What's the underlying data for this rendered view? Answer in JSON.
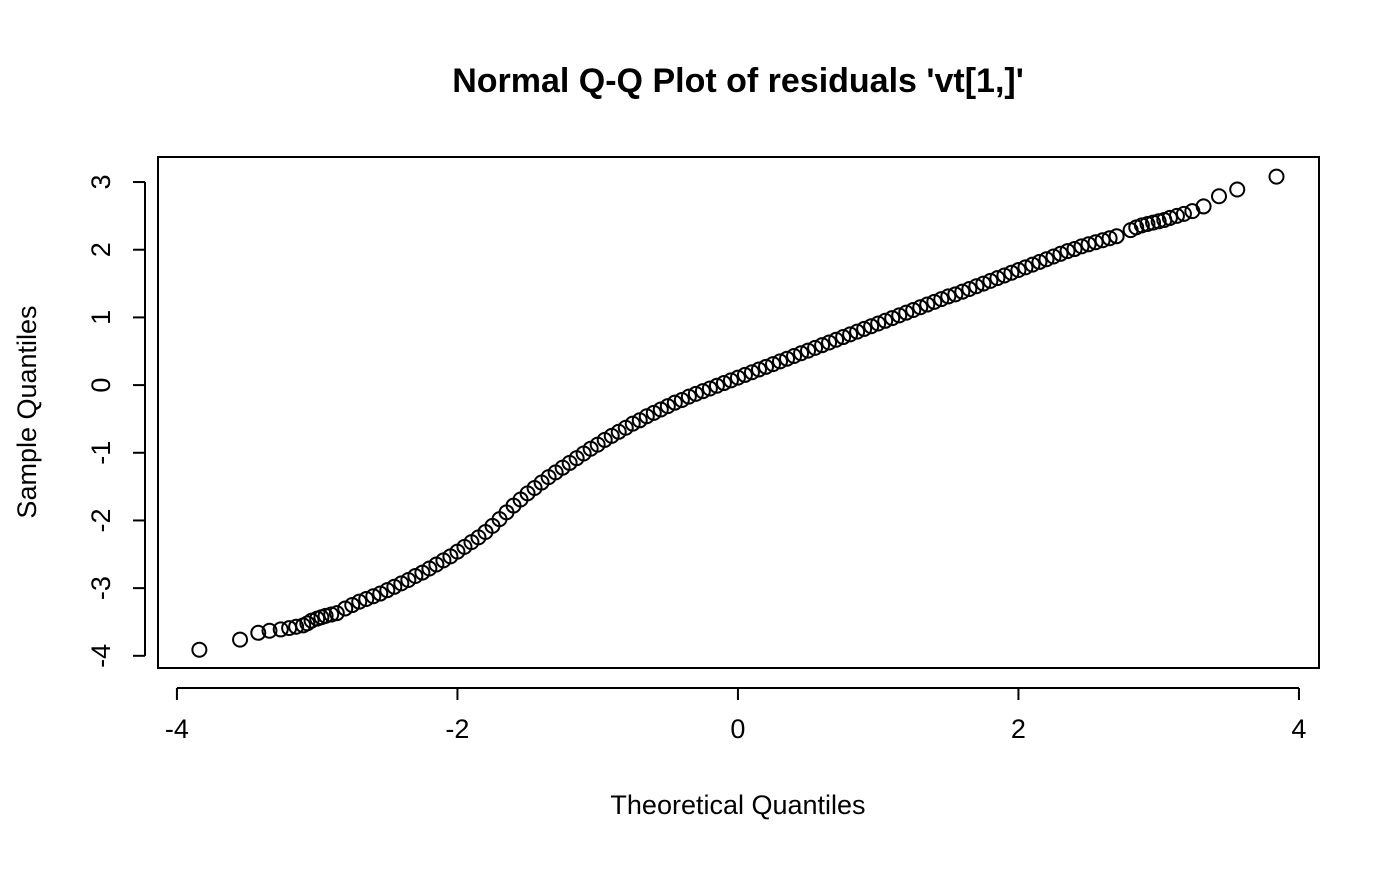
{
  "chart_data": {
    "type": "scatter",
    "title": "Normal Q-Q Plot of residuals 'vt[1,]'",
    "x_label": "Theoretical Quantiles",
    "y_label": "Sample Quantiles",
    "xlim": [
      -4.135,
      4.143
    ],
    "ylim": [
      -4.18,
      3.37
    ],
    "xticks": [
      -4,
      -2,
      0,
      2,
      4
    ],
    "yticks": [
      -4,
      -3,
      -2,
      -1,
      0,
      1,
      2,
      3
    ],
    "color": "#000000",
    "x": [
      -3.84,
      -3.55,
      -3.42,
      -3.34,
      -3.26,
      -3.2,
      -3.15,
      -3.1,
      -3.07,
      -3.04,
      -3.0,
      -2.97,
      -2.94,
      -2.9,
      -2.86,
      -2.8,
      -2.75,
      -2.7,
      -2.65,
      -2.6,
      -2.55,
      -2.5,
      -2.45,
      -2.4,
      -2.35,
      -2.3,
      -2.25,
      -2.2,
      -2.15,
      -2.1,
      -2.05,
      -2.0,
      -1.95,
      -1.9,
      -1.85,
      -1.8,
      -1.75,
      -1.7,
      -1.65,
      -1.6,
      -1.55,
      -1.5,
      -1.45,
      -1.4,
      -1.35,
      -1.3,
      -1.25,
      -1.2,
      -1.15,
      -1.1,
      -1.05,
      -1.0,
      -0.95,
      -0.9,
      -0.85,
      -0.8,
      -0.75,
      -0.7,
      -0.65,
      -0.6,
      -0.55,
      -0.5,
      -0.45,
      -0.4,
      -0.35,
      -0.3,
      -0.25,
      -0.2,
      -0.15,
      -0.1,
      -0.05,
      0.0,
      0.05,
      0.1,
      0.15,
      0.2,
      0.25,
      0.3,
      0.35,
      0.4,
      0.45,
      0.5,
      0.55,
      0.6,
      0.65,
      0.7,
      0.75,
      0.8,
      0.85,
      0.9,
      0.95,
      1.0,
      1.05,
      1.1,
      1.15,
      1.2,
      1.25,
      1.3,
      1.35,
      1.4,
      1.45,
      1.5,
      1.55,
      1.6,
      1.65,
      1.7,
      1.75,
      1.8,
      1.85,
      1.9,
      1.95,
      2.0,
      2.05,
      2.1,
      2.15,
      2.2,
      2.25,
      2.3,
      2.35,
      2.4,
      2.45,
      2.5,
      2.55,
      2.6,
      2.65,
      2.7,
      2.8,
      2.84,
      2.88,
      2.92,
      2.96,
      3.0,
      3.04,
      3.08,
      3.13,
      3.18,
      3.24,
      3.32,
      3.43,
      3.56,
      3.84
    ],
    "y": [
      -3.91,
      -3.76,
      -3.66,
      -3.63,
      -3.61,
      -3.59,
      -3.57,
      -3.55,
      -3.52,
      -3.48,
      -3.45,
      -3.43,
      -3.41,
      -3.39,
      -3.37,
      -3.3,
      -3.25,
      -3.2,
      -3.16,
      -3.12,
      -3.08,
      -3.03,
      -2.98,
      -2.93,
      -2.88,
      -2.82,
      -2.77,
      -2.71,
      -2.65,
      -2.59,
      -2.53,
      -2.46,
      -2.39,
      -2.32,
      -2.25,
      -2.17,
      -2.08,
      -1.98,
      -1.88,
      -1.78,
      -1.69,
      -1.6,
      -1.52,
      -1.44,
      -1.36,
      -1.29,
      -1.22,
      -1.15,
      -1.08,
      -1.01,
      -0.94,
      -0.88,
      -0.81,
      -0.75,
      -0.69,
      -0.63,
      -0.57,
      -0.52,
      -0.46,
      -0.41,
      -0.36,
      -0.31,
      -0.26,
      -0.22,
      -0.17,
      -0.13,
      -0.09,
      -0.05,
      -0.01,
      0.03,
      0.07,
      0.11,
      0.15,
      0.19,
      0.23,
      0.27,
      0.31,
      0.35,
      0.39,
      0.43,
      0.47,
      0.51,
      0.55,
      0.59,
      0.63,
      0.67,
      0.71,
      0.75,
      0.79,
      0.83,
      0.87,
      0.91,
      0.95,
      0.99,
      1.03,
      1.07,
      1.11,
      1.15,
      1.19,
      1.23,
      1.27,
      1.31,
      1.34,
      1.38,
      1.42,
      1.46,
      1.5,
      1.54,
      1.58,
      1.62,
      1.66,
      1.7,
      1.74,
      1.78,
      1.82,
      1.86,
      1.9,
      1.94,
      1.98,
      2.01,
      2.05,
      2.08,
      2.11,
      2.14,
      2.17,
      2.2,
      2.29,
      2.33,
      2.36,
      2.38,
      2.4,
      2.42,
      2.44,
      2.47,
      2.5,
      2.53,
      2.57,
      2.64,
      2.79,
      2.89,
      3.08
    ]
  }
}
